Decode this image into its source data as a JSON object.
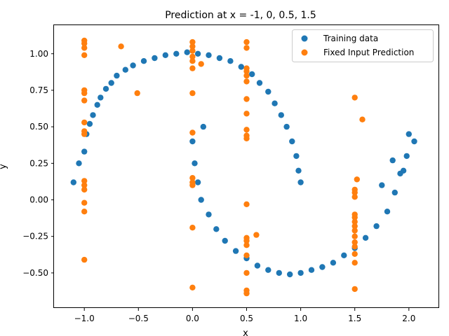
{
  "chart_data": {
    "type": "scatter",
    "title": "Prediction at x = -1, 0, 0.5, 1.5",
    "xlabel": "x",
    "ylabel": "y",
    "xlim": [
      -1.28,
      2.28
    ],
    "ylim": [
      -0.74,
      1.2
    ],
    "xticks": [
      -1.0,
      -0.5,
      0.0,
      0.5,
      1.0,
      1.5,
      2.0
    ],
    "xtick_labels": [
      "−1.0",
      "−0.5",
      "0.0",
      "0.5",
      "1.0",
      "1.5",
      "2.0"
    ],
    "yticks": [
      -0.5,
      -0.25,
      0.0,
      0.25,
      0.5,
      0.75,
      1.0
    ],
    "ytick_labels": [
      "−0.50",
      "−0.25",
      "0.00",
      "0.25",
      "0.50",
      "0.75",
      "1.00"
    ],
    "legend_position": "top-right",
    "grid": false,
    "series": [
      {
        "name": "Training data",
        "color": "#1f77b4",
        "shape": "two interleaving half-moons (moons dataset, ~1000 points, noise ~0.05)",
        "points": [
          [
            -1.1,
            0.12
          ],
          [
            -1.05,
            0.25
          ],
          [
            -1.0,
            0.33
          ],
          [
            -0.98,
            0.45
          ],
          [
            -0.95,
            0.52
          ],
          [
            -0.92,
            0.58
          ],
          [
            -0.88,
            0.65
          ],
          [
            -0.85,
            0.7
          ],
          [
            -0.8,
            0.76
          ],
          [
            -0.75,
            0.8
          ],
          [
            -0.7,
            0.85
          ],
          [
            -0.62,
            0.89
          ],
          [
            -0.55,
            0.92
          ],
          [
            -0.45,
            0.95
          ],
          [
            -0.35,
            0.97
          ],
          [
            -0.25,
            0.99
          ],
          [
            -0.15,
            1.0
          ],
          [
            -0.05,
            1.01
          ],
          [
            0.05,
            1.0
          ],
          [
            0.15,
            0.99
          ],
          [
            0.25,
            0.97
          ],
          [
            0.35,
            0.95
          ],
          [
            0.45,
            0.91
          ],
          [
            0.55,
            0.86
          ],
          [
            0.62,
            0.8
          ],
          [
            0.7,
            0.74
          ],
          [
            0.76,
            0.66
          ],
          [
            0.82,
            0.58
          ],
          [
            0.87,
            0.5
          ],
          [
            0.92,
            0.4
          ],
          [
            0.96,
            0.3
          ],
          [
            0.98,
            0.2
          ],
          [
            1.0,
            0.12
          ],
          [
            0.1,
            0.5
          ],
          [
            0.0,
            0.4
          ],
          [
            0.02,
            0.25
          ],
          [
            0.05,
            0.12
          ],
          [
            0.08,
            0.0
          ],
          [
            0.15,
            -0.1
          ],
          [
            0.22,
            -0.2
          ],
          [
            0.3,
            -0.28
          ],
          [
            0.4,
            -0.35
          ],
          [
            0.5,
            -0.4
          ],
          [
            0.6,
            -0.45
          ],
          [
            0.7,
            -0.48
          ],
          [
            0.8,
            -0.5
          ],
          [
            0.9,
            -0.51
          ],
          [
            1.0,
            -0.5
          ],
          [
            1.1,
            -0.48
          ],
          [
            1.2,
            -0.46
          ],
          [
            1.3,
            -0.43
          ],
          [
            1.4,
            -0.38
          ],
          [
            1.5,
            -0.33
          ],
          [
            1.6,
            -0.26
          ],
          [
            1.7,
            -0.18
          ],
          [
            1.8,
            -0.08
          ],
          [
            1.87,
            0.05
          ],
          [
            1.92,
            0.18
          ],
          [
            1.98,
            0.3
          ],
          [
            2.0,
            0.45
          ],
          [
            2.05,
            0.4
          ],
          [
            1.95,
            0.2
          ],
          [
            1.75,
            0.1
          ],
          [
            1.85,
            0.27
          ]
        ]
      },
      {
        "name": "Fixed Input Prediction",
        "color": "#ff7f0e",
        "points": [
          [
            -1.0,
            1.09
          ],
          [
            -1.0,
            1.07
          ],
          [
            -1.0,
            1.04
          ],
          [
            -1.0,
            0.99
          ],
          [
            -1.0,
            0.75
          ],
          [
            -1.0,
            0.73
          ],
          [
            -1.0,
            0.68
          ],
          [
            -1.0,
            0.53
          ],
          [
            -1.0,
            0.47
          ],
          [
            -1.0,
            0.45
          ],
          [
            -1.0,
            0.13
          ],
          [
            -1.0,
            0.1
          ],
          [
            -1.0,
            0.07
          ],
          [
            -1.0,
            -0.02
          ],
          [
            -1.0,
            -0.08
          ],
          [
            -1.0,
            -0.41
          ],
          [
            -0.66,
            1.05
          ],
          [
            -0.51,
            0.73
          ],
          [
            0.0,
            1.08
          ],
          [
            0.0,
            1.05
          ],
          [
            0.0,
            1.02
          ],
          [
            0.0,
            0.98
          ],
          [
            0.0,
            0.95
          ],
          [
            0.0,
            0.9
          ],
          [
            0.0,
            0.73
          ],
          [
            0.0,
            0.46
          ],
          [
            0.0,
            0.15
          ],
          [
            0.0,
            0.12
          ],
          [
            0.0,
            0.1
          ],
          [
            0.0,
            -0.19
          ],
          [
            0.0,
            -0.6
          ],
          [
            0.08,
            0.93
          ],
          [
            0.5,
            1.08
          ],
          [
            0.5,
            1.04
          ],
          [
            0.5,
            0.9
          ],
          [
            0.5,
            0.88
          ],
          [
            0.5,
            0.85
          ],
          [
            0.5,
            0.81
          ],
          [
            0.5,
            0.69
          ],
          [
            0.5,
            0.59
          ],
          [
            0.5,
            0.48
          ],
          [
            0.5,
            0.44
          ],
          [
            0.5,
            0.42
          ],
          [
            0.5,
            -0.03
          ],
          [
            0.5,
            -0.26
          ],
          [
            0.5,
            -0.28
          ],
          [
            0.5,
            -0.31
          ],
          [
            0.5,
            -0.38
          ],
          [
            0.5,
            -0.5
          ],
          [
            0.5,
            -0.62
          ],
          [
            0.5,
            -0.64
          ],
          [
            0.59,
            -0.24
          ],
          [
            1.5,
            0.7
          ],
          [
            1.5,
            0.07
          ],
          [
            1.5,
            0.05
          ],
          [
            1.5,
            0.02
          ],
          [
            1.5,
            -0.1
          ],
          [
            1.5,
            -0.12
          ],
          [
            1.5,
            -0.15
          ],
          [
            1.5,
            -0.18
          ],
          [
            1.5,
            -0.21
          ],
          [
            1.5,
            -0.25
          ],
          [
            1.5,
            -0.29
          ],
          [
            1.5,
            -0.32
          ],
          [
            1.5,
            -0.37
          ],
          [
            1.5,
            -0.43
          ],
          [
            1.5,
            -0.61
          ],
          [
            1.52,
            0.14
          ],
          [
            1.57,
            0.55
          ]
        ]
      }
    ]
  }
}
